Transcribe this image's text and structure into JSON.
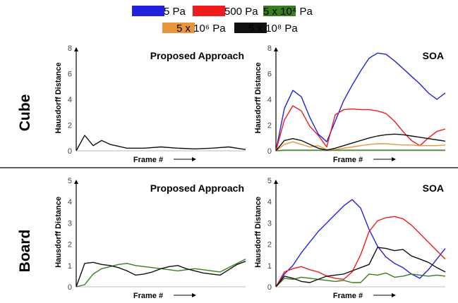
{
  "legend": [
    {
      "label": "5 Pa",
      "color": "#2222dd"
    },
    {
      "label": "500 Pa",
      "color": "#ee1c1c"
    },
    {
      "label": "5 x 10⁴ Pa",
      "color": "#3a7d1e"
    },
    {
      "label": "5 x 10⁶ Pa",
      "color": "#e8963c"
    },
    {
      "label": "5 x 10⁸ Pa",
      "color": "#111111"
    }
  ],
  "rows": [
    {
      "label": "Cube"
    },
    {
      "label": "Board"
    }
  ],
  "chart_data": [
    {
      "type": "line",
      "row": "Cube",
      "title": "Proposed Approach",
      "xlabel": "Frame #",
      "ylabel": "Hausdorff Distance",
      "ylim": [
        0,
        8
      ],
      "yticks": [
        0,
        2,
        4,
        6,
        8
      ],
      "x": [
        0,
        5,
        10,
        15,
        20,
        30,
        40,
        50,
        60,
        70,
        80,
        90,
        100
      ],
      "series": [
        {
          "name": "5 x 10⁸ Pa",
          "values": [
            0,
            1.2,
            0.4,
            0.8,
            0.5,
            0.2,
            0.2,
            0.3,
            0.2,
            0.15,
            0.2,
            0.3,
            0.1
          ]
        }
      ]
    },
    {
      "type": "line",
      "row": "Cube",
      "title": "SOA",
      "xlabel": "Frame #",
      "ylabel": "Hausdorff Distance",
      "ylim": [
        0,
        8
      ],
      "yticks": [
        0,
        2,
        4,
        6,
        8
      ],
      "x": [
        0,
        5,
        10,
        15,
        20,
        25,
        30,
        35,
        40,
        45,
        50,
        55,
        60,
        65,
        70,
        75,
        80,
        85,
        90,
        95,
        100
      ],
      "series": [
        {
          "name": "5 Pa",
          "values": [
            0,
            3.3,
            4.7,
            4.2,
            2.6,
            1.3,
            0.7,
            2.3,
            3.9,
            5.1,
            6.2,
            7.2,
            7.6,
            7.5,
            7.0,
            6.4,
            5.8,
            5.2,
            4.5,
            4.0,
            4.5
          ]
        },
        {
          "name": "500 Pa",
          "values": [
            0,
            2.4,
            3.5,
            3.1,
            1.9,
            1.2,
            0.3,
            2.8,
            3.2,
            3.25,
            3.2,
            3.2,
            3.1,
            2.9,
            2.3,
            1.5,
            0.8,
            0.4,
            1.0,
            1.5,
            1.7
          ]
        },
        {
          "name": "5 x 10⁴ Pa",
          "values": [
            0,
            0.05,
            0.05,
            0.05,
            0.05,
            0.05,
            0.05,
            0.05,
            0.05,
            0.05,
            0.05,
            0.05,
            0.05,
            0.05,
            0.05,
            0.05,
            0.05,
            0.05,
            0.05,
            0.05,
            0.05
          ]
        },
        {
          "name": "5 x 10⁶ Pa",
          "values": [
            0,
            0.5,
            0.7,
            0.5,
            0.3,
            0.4,
            0.1,
            0.1,
            0.2,
            0.3,
            0.4,
            0.5,
            0.55,
            0.55,
            0.5,
            0.45,
            0.45,
            0.4,
            0.4,
            0.4,
            0.45
          ]
        },
        {
          "name": "5 x 10⁸ Pa",
          "values": [
            0,
            0.8,
            0.95,
            0.8,
            0.5,
            0.2,
            0.05,
            0.2,
            0.4,
            0.6,
            0.8,
            1.0,
            1.15,
            1.25,
            1.3,
            1.25,
            1.15,
            1.05,
            0.95,
            0.85,
            0.75
          ]
        }
      ]
    },
    {
      "type": "line",
      "row": "Board",
      "title": "Proposed Approach",
      "xlabel": "Frame #",
      "ylabel": "Hausdorff Distance",
      "ylim": [
        0,
        5
      ],
      "yticks": [
        0,
        1,
        2,
        3,
        4,
        5
      ],
      "x": [
        0,
        5,
        10,
        15,
        20,
        25,
        30,
        35,
        40,
        45,
        50,
        55,
        60,
        65,
        70,
        75,
        80,
        85,
        90,
        95,
        100
      ],
      "series": [
        {
          "name": "5 x 10⁴ Pa",
          "values": [
            0,
            0.1,
            0.6,
            0.85,
            0.95,
            1.05,
            1.1,
            1.0,
            0.95,
            0.9,
            0.85,
            0.8,
            0.75,
            0.8,
            0.85,
            0.8,
            0.75,
            0.7,
            0.9,
            1.1,
            1.3
          ]
        },
        {
          "name": "5 x 10⁸ Pa",
          "values": [
            0,
            1.1,
            1.15,
            1.05,
            1.0,
            0.9,
            0.75,
            0.55,
            0.6,
            0.7,
            0.85,
            0.95,
            1.0,
            0.85,
            0.75,
            0.65,
            0.6,
            0.55,
            0.8,
            1.05,
            1.2
          ]
        }
      ]
    },
    {
      "type": "line",
      "row": "Board",
      "title": "SOA",
      "xlabel": "Frame #",
      "ylabel": "Hausdorff Distance",
      "ylim": [
        0,
        5
      ],
      "yticks": [
        0,
        1,
        2,
        3,
        4,
        5
      ],
      "x": [
        0,
        5,
        10,
        15,
        20,
        25,
        30,
        35,
        40,
        45,
        50,
        55,
        60,
        65,
        70,
        75,
        80,
        85,
        90,
        95,
        100
      ],
      "series": [
        {
          "name": "5 Pa",
          "values": [
            0,
            0.6,
            1.0,
            1.6,
            2.1,
            2.6,
            3.0,
            3.4,
            3.8,
            4.1,
            3.7,
            2.7,
            1.9,
            1.4,
            1.1,
            0.9,
            0.6,
            0.4,
            0.8,
            1.3,
            1.8
          ]
        },
        {
          "name": "500 Pa",
          "values": [
            0,
            0.7,
            0.85,
            0.95,
            0.8,
            0.7,
            0.5,
            0.4,
            0.35,
            0.7,
            1.5,
            2.6,
            3.1,
            3.25,
            3.3,
            3.2,
            2.9,
            2.5,
            2.1,
            1.7,
            1.3
          ]
        },
        {
          "name": "5 x 10⁴ Pa",
          "values": [
            0,
            0.4,
            0.35,
            0.45,
            0.4,
            0.35,
            0.3,
            0.25,
            0.3,
            0.2,
            0.2,
            0.6,
            0.55,
            0.65,
            0.45,
            0.5,
            0.6,
            0.55,
            0.5,
            0.55,
            0.5
          ]
        },
        {
          "name": "5 x 10⁸ Pa",
          "values": [
            0,
            0.5,
            0.4,
            0.25,
            0.2,
            0.35,
            0.5,
            0.55,
            0.6,
            0.75,
            0.9,
            1.05,
            1.85,
            1.8,
            1.7,
            1.75,
            1.45,
            1.3,
            1.15,
            0.9,
            0.7
          ]
        }
      ]
    }
  ]
}
